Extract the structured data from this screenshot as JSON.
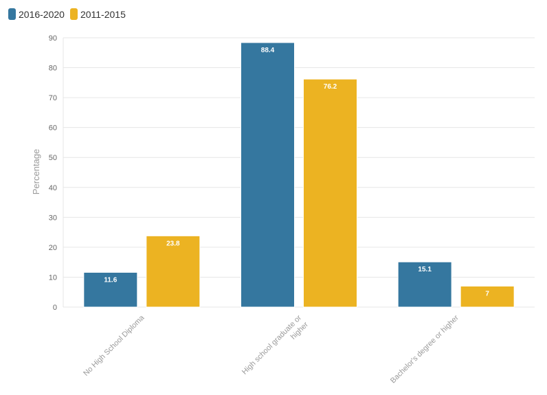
{
  "chart_data": {
    "type": "bar",
    "title": "",
    "xlabel": "",
    "ylabel": "Percentage",
    "ylim": [
      0,
      90
    ],
    "yticks": [
      0,
      10,
      20,
      30,
      40,
      50,
      60,
      70,
      80,
      90
    ],
    "grid": true,
    "legend_position": "top-left",
    "categories": [
      [
        "No High School Diploma"
      ],
      [
        "High school graduate or",
        "higher"
      ],
      [
        "Bachelor's degree or higher"
      ]
    ],
    "series": [
      {
        "name": "2016-2020",
        "color": "#35779f",
        "values": [
          11.6,
          88.4,
          15.1
        ]
      },
      {
        "name": "2011-2015",
        "color": "#ecb322",
        "values": [
          23.8,
          76.2,
          7
        ]
      }
    ]
  }
}
